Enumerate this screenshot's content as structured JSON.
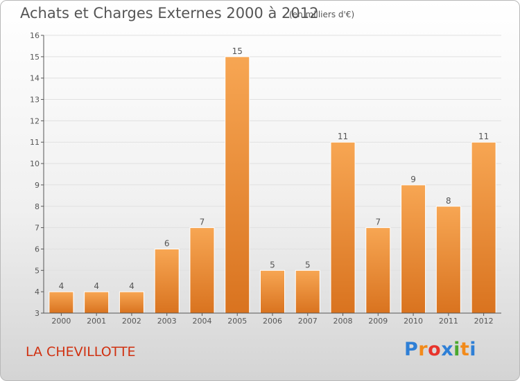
{
  "title": "Achats et Charges Externes 2000 à 2012",
  "subtitle": "(en milliers d'€)",
  "place": "LA CHEVILLOTTE",
  "logo": {
    "text": "Proxiti",
    "letters": [
      "P",
      "r",
      "o",
      "x",
      "i",
      "t",
      "i"
    ]
  },
  "colors": {
    "bar_top": "#f7a653",
    "bar_bottom": "#d9731f",
    "grid": "#e0e0e0",
    "axis": "#555555",
    "place": "#d03010"
  },
  "chart_data": {
    "type": "bar",
    "title": "Achats et Charges Externes 2000 à 2012",
    "subtitle": "(en milliers d'€)",
    "categories": [
      "2000",
      "2001",
      "2002",
      "2003",
      "2004",
      "2005",
      "2006",
      "2007",
      "2008",
      "2009",
      "2010",
      "2011",
      "2012"
    ],
    "values": [
      4,
      4,
      4,
      6,
      7,
      15,
      5,
      5,
      11,
      7,
      9,
      8,
      11
    ],
    "ylim": [
      3,
      16
    ],
    "yticks": [
      3,
      4,
      5,
      6,
      7,
      8,
      9,
      10,
      11,
      12,
      13,
      14,
      15,
      16
    ],
    "xlabel": "",
    "ylabel": "",
    "grid": true,
    "data_labels": true
  }
}
